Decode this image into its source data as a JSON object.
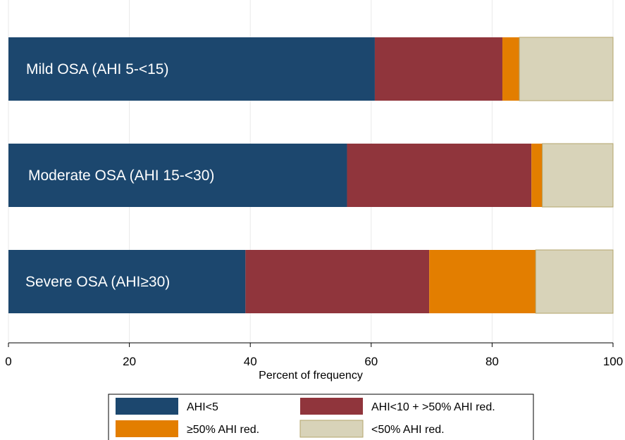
{
  "chart_data": {
    "type": "bar",
    "orientation": "horizontal",
    "stacked": true,
    "categories": [
      "Mild OSA (AHI 5-<15)",
      "Moderate OSA (AHI 15-<30)",
      "Severe OSA (AHI≥30)"
    ],
    "series": [
      {
        "name": "AHI<5",
        "color": "#1c476e",
        "values": [
          60.6,
          56.0,
          39.2
        ]
      },
      {
        "name": "AHI<10 + >50% AHI red.",
        "color": "#90353c",
        "values": [
          21.1,
          30.5,
          30.4
        ]
      },
      {
        "name": "≥50% AHI red.",
        "color": "#e37e00",
        "values": [
          2.8,
          1.8,
          17.6
        ]
      },
      {
        "name": "<50% AHI red.",
        "color": "#d8d3b9",
        "values": [
          15.5,
          11.7,
          12.8
        ]
      }
    ],
    "xlabel": "Percent of frequency",
    "xlim": [
      0,
      100
    ],
    "xticks": [
      0,
      20,
      40,
      60,
      80,
      100
    ],
    "grid": "vertical",
    "legend_position": "bottom",
    "legend_columns": 2
  }
}
